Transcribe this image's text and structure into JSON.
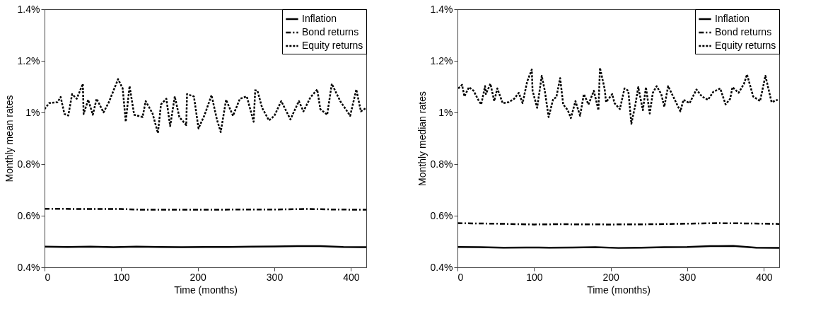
{
  "chart_data": [
    {
      "type": "line",
      "xlabel": "Time (months)",
      "ylabel": "Monthly mean rates",
      "xlim": [
        0,
        420
      ],
      "xticks": [
        0,
        100,
        200,
        300,
        400
      ],
      "ylim": [
        0.4,
        1.4
      ],
      "yticks": [
        {
          "value": 0.4,
          "label": "0.4%"
        },
        {
          "value": 0.6,
          "label": "0.6%"
        },
        {
          "value": 0.8,
          "label": "0.8%"
        },
        {
          "value": 1.0,
          "label": "1%"
        },
        {
          "value": 1.2,
          "label": "1.2%"
        },
        {
          "value": 1.4,
          "label": "1.4%"
        }
      ],
      "grid": false,
      "legend": "top right",
      "series": [
        {
          "name": "Inflation",
          "color": "#000000",
          "line_style": "solid",
          "x": [
            0,
            30,
            60,
            90,
            120,
            150,
            180,
            210,
            240,
            270,
            300,
            330,
            360,
            390,
            420
          ],
          "values": [
            0.48,
            0.479,
            0.48,
            0.478,
            0.48,
            0.479,
            0.478,
            0.479,
            0.479,
            0.48,
            0.481,
            0.482,
            0.482,
            0.479,
            0.478
          ]
        },
        {
          "name": "Bond returns",
          "color": "#000000",
          "line_style": "dashed",
          "x": [
            0,
            50,
            100,
            130,
            200,
            260,
            300,
            340,
            380,
            420
          ],
          "values": [
            0.627,
            0.626,
            0.626,
            0.623,
            0.623,
            0.624,
            0.624,
            0.626,
            0.624,
            0.623
          ]
        },
        {
          "name": "Equity returns",
          "color": "#000000",
          "line_style": "dotted",
          "x": [
            0,
            6,
            17,
            21,
            26,
            31,
            36,
            42,
            50,
            51,
            57,
            63,
            68,
            77,
            84,
            96,
            102,
            106,
            111,
            117,
            128,
            132,
            141,
            148,
            152,
            159,
            164,
            170,
            176,
            185,
            186,
            195,
            201,
            209,
            218,
            225,
            230,
            237,
            246,
            255,
            264,
            273,
            275,
            278,
            284,
            293,
            300,
            309,
            321,
            332,
            338,
            347,
            356,
            360,
            369,
            375,
            386,
            399,
            407,
            413,
            420
          ],
          "values": [
            1.013,
            1.036,
            1.04,
            1.06,
            0.994,
            0.988,
            1.071,
            1.053,
            1.111,
            0.994,
            1.049,
            0.991,
            1.053,
            1.0,
            1.04,
            1.129,
            1.093,
            0.964,
            1.102,
            0.991,
            0.982,
            1.044,
            0.996,
            0.92,
            1.031,
            1.053,
            0.947,
            1.062,
            0.982,
            0.951,
            1.071,
            1.062,
            0.938,
            0.991,
            1.067,
            0.973,
            0.924,
            1.049,
            0.987,
            1.053,
            1.062,
            0.964,
            1.086,
            1.084,
            1.018,
            0.969,
            0.987,
            1.044,
            0.973,
            1.044,
            1.004,
            1.058,
            1.089,
            1.013,
            0.991,
            1.111,
            1.044,
            0.987,
            1.089,
            1.004,
            1.018
          ]
        }
      ]
    },
    {
      "type": "line",
      "xlabel": "Time (months)",
      "ylabel": "Monthly median rates",
      "xlim": [
        0,
        420
      ],
      "xticks": [
        0,
        100,
        200,
        300,
        400
      ],
      "ylim": [
        0.4,
        1.4
      ],
      "yticks": [
        {
          "value": 0.4,
          "label": "0.4%"
        },
        {
          "value": 0.6,
          "label": "0.6%"
        },
        {
          "value": 0.8,
          "label": "0.8%"
        },
        {
          "value": 1.0,
          "label": "1%"
        },
        {
          "value": 1.2,
          "label": "1.2%"
        },
        {
          "value": 1.4,
          "label": "1.4%"
        }
      ],
      "grid": false,
      "legend": "top right",
      "series": [
        {
          "name": "Inflation",
          "color": "#000000",
          "line_style": "solid",
          "x": [
            0,
            30,
            60,
            90,
            120,
            150,
            180,
            210,
            240,
            270,
            300,
            330,
            360,
            390,
            420
          ],
          "values": [
            0.479,
            0.478,
            0.476,
            0.477,
            0.476,
            0.477,
            0.478,
            0.475,
            0.476,
            0.478,
            0.479,
            0.482,
            0.483,
            0.476,
            0.475
          ]
        },
        {
          "name": "Bond returns",
          "color": "#000000",
          "line_style": "dashed",
          "x": [
            0,
            50,
            100,
            130,
            200,
            260,
            300,
            340,
            380,
            420
          ],
          "values": [
            0.571,
            0.569,
            0.566,
            0.567,
            0.566,
            0.567,
            0.569,
            0.571,
            0.57,
            0.568
          ]
        },
        {
          "name": "Equity returns",
          "color": "#000000",
          "line_style": "dotted",
          "x": [
            1,
            6,
            9,
            15,
            21,
            28,
            31,
            36,
            37,
            43,
            48,
            52,
            59,
            67,
            74,
            80,
            85,
            91,
            97,
            98,
            104,
            110,
            114,
            119,
            125,
            129,
            134,
            138,
            144,
            148,
            154,
            160,
            165,
            171,
            178,
            184,
            186,
            192,
            194,
            202,
            205,
            212,
            218,
            223,
            227,
            232,
            236,
            242,
            246,
            251,
            255,
            260,
            266,
            270,
            275,
            283,
            291,
            295,
            303,
            312,
            319,
            327,
            334,
            343,
            350,
            356,
            359,
            367,
            374,
            378,
            386,
            395,
            402,
            410,
            418
          ],
          "values": [
            1.093,
            1.107,
            1.062,
            1.098,
            1.084,
            1.044,
            1.031,
            1.102,
            1.071,
            1.111,
            1.044,
            1.093,
            1.036,
            1.04,
            1.053,
            1.076,
            1.036,
            1.12,
            1.166,
            1.084,
            1.018,
            1.142,
            1.084,
            0.982,
            1.053,
            1.058,
            1.133,
            1.031,
            1.009,
            0.978,
            1.044,
            0.987,
            1.071,
            1.031,
            1.084,
            1.009,
            1.173,
            1.093,
            1.04,
            1.071,
            1.036,
            1.013,
            1.093,
            1.084,
            0.956,
            1.027,
            1.098,
            1.009,
            1.098,
            0.996,
            1.076,
            1.102,
            1.071,
            1.022,
            1.102,
            1.053,
            1.004,
            1.049,
            1.036,
            1.089,
            1.062,
            1.049,
            1.08,
            1.093,
            1.031,
            1.053,
            1.098,
            1.076,
            1.111,
            1.147,
            1.062,
            1.044,
            1.142,
            1.04,
            1.049
          ]
        }
      ]
    }
  ]
}
